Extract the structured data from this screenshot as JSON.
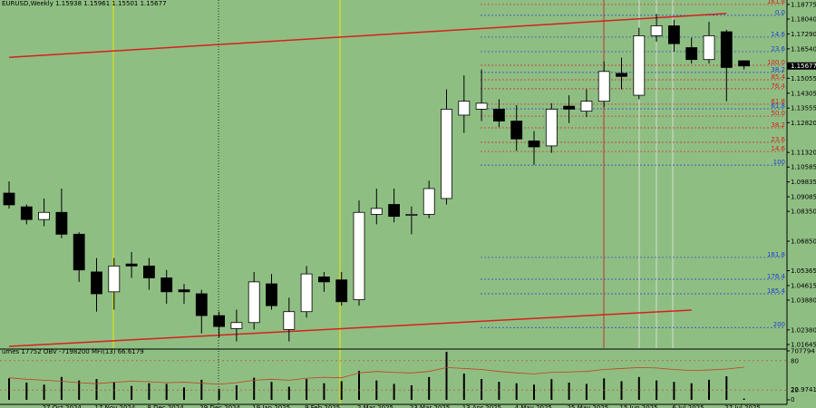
{
  "chart_data": {
    "type": "candlestick",
    "title": "EURUSD,Weekly  1.15938 1.15961 1.15501 1.15677",
    "background": "#8fbe83",
    "up_color": "#ffffff",
    "down_color": "#000000",
    "categories": [
      null,
      null,
      "27 Oct 2024",
      null,
      null,
      "17 Nov 2024",
      null,
      null,
      "8 Dec 2024",
      null,
      null,
      "29 Dec 2024",
      null,
      null,
      "19 Jan 2025",
      null,
      null,
      "9 Feb 2025",
      null,
      null,
      "2 Mar 2025",
      null,
      null,
      "23 Mar 2025",
      null,
      null,
      "13 Apr 2025",
      null,
      null,
      "4 May 2025",
      null,
      null,
      "25 May 2025",
      null,
      null,
      "15 Jun 2025",
      null,
      null,
      "6 Jul 2025",
      null,
      null,
      "27 Jul 2025",
      null
    ],
    "open": [
      1.0927,
      1.0858,
      1.0794,
      1.083,
      1.072,
      1.053,
      1.043,
      1.057,
      1.056,
      1.05,
      1.044,
      1.042,
      1.031,
      1.0245,
      1.0275,
      1.047,
      1.024,
      1.033,
      1.0505,
      1.049,
      1.039,
      1.082,
      1.087,
      1.0815,
      1.082,
      1.09,
      1.132,
      1.135,
      1.135,
      1.129,
      1.119,
      1.1165,
      1.1365,
      1.134,
      1.139,
      1.153,
      1.142,
      1.172,
      1.177,
      1.166,
      1.16,
      1.174,
      1.15938
    ],
    "high": [
      1.0986,
      1.087,
      1.09,
      1.095,
      1.073,
      1.06,
      1.06,
      1.063,
      1.06,
      1.054,
      1.047,
      1.044,
      1.033,
      1.034,
      1.053,
      1.052,
      1.04,
      1.056,
      1.053,
      1.053,
      1.089,
      1.095,
      1.095,
      1.086,
      1.099,
      1.145,
      1.152,
      1.155,
      1.14,
      1.137,
      1.124,
      1.138,
      1.142,
      1.145,
      1.159,
      1.161,
      1.176,
      1.183,
      1.18,
      1.171,
      1.179,
      1.175,
      1.15961
    ],
    "low": [
      1.0849,
      1.077,
      1.076,
      1.07,
      1.048,
      1.033,
      1.034,
      1.05,
      1.044,
      1.037,
      1.037,
      1.022,
      1.02,
      1.018,
      1.024,
      1.034,
      1.018,
      1.03,
      1.043,
      1.036,
      1.036,
      1.077,
      1.078,
      1.072,
      1.08,
      1.087,
      1.123,
      1.129,
      1.126,
      1.114,
      1.107,
      1.113,
      1.128,
      1.131,
      1.136,
      1.145,
      1.14,
      1.169,
      1.164,
      1.158,
      1.158,
      1.139,
      1.15501
    ],
    "close": [
      1.0868,
      1.0794,
      1.083,
      1.072,
      1.054,
      1.042,
      1.056,
      1.056,
      1.05,
      1.043,
      1.043,
      1.031,
      1.0255,
      1.0275,
      1.048,
      1.036,
      1.033,
      1.052,
      1.048,
      1.038,
      1.083,
      1.085,
      1.081,
      1.082,
      1.095,
      1.135,
      1.139,
      1.138,
      1.129,
      1.12,
      1.116,
      1.135,
      1.135,
      1.139,
      1.154,
      1.1515,
      1.172,
      1.177,
      1.168,
      1.16,
      1.172,
      1.156,
      1.15677
    ],
    "ylim": [
      1.0146,
      1.19
    ],
    "yticks": [
      {
        "value": 1.18775,
        "label": "1.18775"
      },
      {
        "value": 1.1804,
        "label": "1.18040"
      },
      {
        "value": 1.1729,
        "label": "1.17290"
      },
      {
        "value": 1.1654,
        "label": "1.16540"
      },
      {
        "value": 1.15055,
        "label": "1.15055"
      },
      {
        "value": 1.14305,
        "label": "1.14305"
      },
      {
        "value": 1.13555,
        "label": "1.13555"
      },
      {
        "value": 1.1282,
        "label": "1.12820"
      },
      {
        "value": 1.1132,
        "label": "1.11320"
      },
      {
        "value": 1.10585,
        "label": "1.10585"
      },
      {
        "value": 1.09835,
        "label": "1.09835"
      },
      {
        "value": 1.09085,
        "label": "1.09085"
      },
      {
        "value": 1.0835,
        "label": "1.08350"
      },
      {
        "value": 1.0685,
        "label": "1.06850"
      },
      {
        "value": 1.05365,
        "label": "1.05365"
      },
      {
        "value": 1.04615,
        "label": "1.04615"
      },
      {
        "value": 1.0388,
        "label": "1.03880"
      },
      {
        "value": 1.0238,
        "label": "1.02380"
      },
      {
        "value": 1.01645,
        "label": "1.01645"
      }
    ],
    "current_price": {
      "value": 1.15677,
      "label": "1.15677"
    },
    "trendline_color": "#d62020",
    "trendlines": [
      {
        "x": [
          0,
          41
        ],
        "values": [
          1.1611,
          1.1832
        ]
      },
      {
        "x": [
          0,
          39
        ],
        "values": [
          1.0155,
          1.0338
        ]
      }
    ],
    "levels": [
      {
        "value": 1.18775,
        "label": "161.8",
        "color": "#d62020"
      },
      {
        "value": 1.1823,
        "label": "0.0",
        "color": "#2040d0"
      },
      {
        "value": 1.1713,
        "label": "14.6",
        "color": "#2040d0"
      },
      {
        "value": 1.164,
        "label": "23.6",
        "color": "#2040d0"
      },
      {
        "value": 1.1571,
        "label": "100.0",
        "color": "#d62020"
      },
      {
        "value": 1.1535,
        "label": "38.2",
        "color": "#2040d0"
      },
      {
        "value": 1.1498,
        "label": "85.4",
        "color": "#d62020"
      },
      {
        "value": 1.1453,
        "label": "76.4",
        "color": "#d62020"
      },
      {
        "value": 1.1375,
        "label": "61.8",
        "color": "#d62020"
      },
      {
        "value": 1.1352,
        "label": "61.8",
        "color": "#2040d0"
      },
      {
        "value": 1.1315,
        "label": "50.0",
        "color": "#d62020"
      },
      {
        "value": 1.1256,
        "label": "38.2",
        "color": "#d62020"
      },
      {
        "value": 1.1183,
        "label": "23.6",
        "color": "#d62020"
      },
      {
        "value": 1.1137,
        "label": "14.6",
        "color": "#d62020"
      },
      {
        "value": 1.1068,
        "label": "100",
        "color": "#2040d0"
      },
      {
        "value": 1.0603,
        "label": "161.8",
        "color": "#2040d0"
      },
      {
        "value": 1.0493,
        "label": "176.4",
        "color": "#2040d0"
      },
      {
        "value": 1.042,
        "label": "185.4",
        "color": "#2040d0"
      },
      {
        "value": 1.025,
        "label": "200",
        "color": "#2040d0"
      }
    ],
    "indicator": {
      "title": "umes 17752 OBV -7198200 MFI(13) 66.6179",
      "volume_color": "#000000",
      "volumes": [
        310000,
        250000,
        220000,
        330000,
        280000,
        300000,
        260000,
        200000,
        240000,
        230000,
        180000,
        290000,
        160000,
        210000,
        320000,
        260000,
        190000,
        300000,
        240000,
        270000,
        420000,
        280000,
        230000,
        210000,
        330000,
        695000,
        380000,
        300000,
        260000,
        240000,
        220000,
        300000,
        250000,
        230000,
        310000,
        270000,
        330000,
        280000,
        260000,
        240000,
        290000,
        340000,
        17752
      ],
      "volume_ylim": [
        0,
        707794
      ],
      "volume_yticks": [
        0,
        707794
      ],
      "mfi_color": "#c04020",
      "mfi": [
        45,
        42,
        40,
        38,
        35,
        33,
        36,
        38,
        37,
        35,
        36,
        34,
        32,
        35,
        40,
        42,
        40,
        44,
        46,
        45,
        55,
        58,
        56,
        55,
        58,
        66,
        64,
        62,
        58,
        55,
        53,
        56,
        57,
        58,
        62,
        64,
        66,
        65,
        62,
        60,
        61,
        63,
        66.6179
      ],
      "mfi_ylim": [
        0,
        100
      ],
      "mfi_yticks": [
        20,
        80
      ],
      "level_label": "22.9741"
    }
  }
}
